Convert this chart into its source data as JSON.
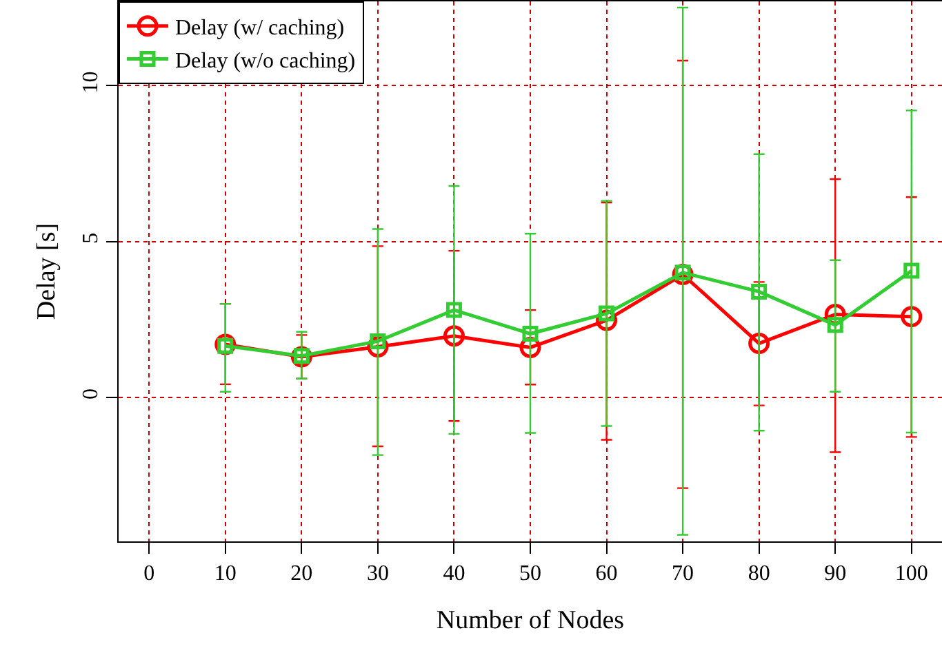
{
  "chart_data": {
    "type": "line",
    "xlabel": "Number of Nodes",
    "ylabel": "Delay [s]",
    "x": [
      10,
      20,
      30,
      40,
      50,
      60,
      70,
      80,
      90,
      100
    ],
    "series": [
      {
        "name": "Delay (w/ caching)",
        "color": "#ff0000",
        "marker": "circle",
        "values": [
          1.7,
          1.3,
          1.62,
          1.97,
          1.6,
          2.47,
          3.94,
          1.73,
          2.66,
          2.59
        ],
        "errors": [
          [
            0.42,
            3.0
          ],
          [
            0.6,
            2.0
          ],
          [
            -1.57,
            4.85
          ],
          [
            -0.76,
            4.7
          ],
          [
            0.41,
            2.8
          ],
          [
            -1.36,
            6.25
          ],
          [
            -2.91,
            10.8
          ],
          [
            -0.26,
            3.7
          ],
          [
            -1.76,
            7.0
          ],
          [
            -1.27,
            6.42
          ]
        ]
      },
      {
        "name": "Delay (w/o caching)",
        "color": "#33cc33",
        "marker": "square",
        "values": [
          1.65,
          1.33,
          1.8,
          2.8,
          2.04,
          2.69,
          4.0,
          3.39,
          2.32,
          4.06
        ],
        "errors": [
          [
            0.18,
            3.0
          ],
          [
            0.6,
            2.1
          ],
          [
            -1.85,
            5.4
          ],
          [
            -1.17,
            6.78
          ],
          [
            -1.14,
            5.25
          ],
          [
            -0.92,
            6.3
          ],
          [
            -4.41,
            12.5
          ],
          [
            -1.07,
            7.8
          ],
          [
            0.18,
            4.4
          ],
          [
            -1.13,
            9.2
          ]
        ]
      }
    ],
    "xlim": [
      -4,
      104
    ],
    "xticks": [
      0,
      10,
      20,
      30,
      40,
      50,
      60,
      70,
      80,
      90,
      100
    ],
    "ylim": [
      -4.62,
      12.7
    ],
    "yticks": [
      0,
      5,
      10
    ],
    "grid": true,
    "legend": "top left",
    "line_style": "solid"
  }
}
